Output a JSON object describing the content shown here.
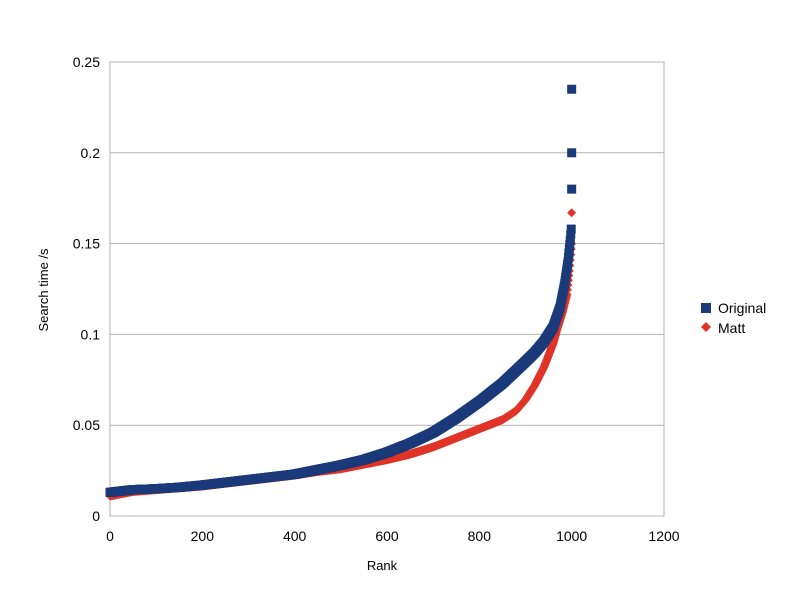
{
  "chart_data": {
    "type": "scatter",
    "title": "",
    "xlabel": "Rank",
    "ylabel": "Search time /s",
    "xlim": [
      0,
      1200
    ],
    "ylim": [
      0,
      0.25
    ],
    "x_ticks": [
      0,
      200,
      400,
      600,
      800,
      1000,
      1200
    ],
    "y_ticks": [
      0,
      0.05,
      0.1,
      0.15,
      0.2,
      0.25
    ],
    "x_tick_labels": [
      "0",
      "200",
      "400",
      "600",
      "800",
      "1000",
      "1200"
    ],
    "y_tick_labels": [
      "0",
      "0.05",
      "0.1",
      "0.15",
      "0.2",
      "0.25"
    ],
    "grid": "horizontal",
    "legend_position": "right",
    "series": [
      {
        "name": "Original",
        "marker": "square",
        "color": "#1b3a7a",
        "points": [
          [
            0,
            0.013
          ],
          [
            50,
            0.0145
          ],
          [
            100,
            0.015
          ],
          [
            150,
            0.0158
          ],
          [
            200,
            0.017
          ],
          [
            250,
            0.0185
          ],
          [
            300,
            0.02
          ],
          [
            350,
            0.0215
          ],
          [
            400,
            0.023
          ],
          [
            450,
            0.0255
          ],
          [
            500,
            0.028
          ],
          [
            550,
            0.031
          ],
          [
            600,
            0.035
          ],
          [
            650,
            0.04
          ],
          [
            700,
            0.046
          ],
          [
            750,
            0.054
          ],
          [
            800,
            0.063
          ],
          [
            850,
            0.073
          ],
          [
            900,
            0.085
          ],
          [
            920,
            0.09
          ],
          [
            940,
            0.096
          ],
          [
            960,
            0.104
          ],
          [
            975,
            0.115
          ],
          [
            985,
            0.128
          ],
          [
            992,
            0.14
          ],
          [
            997,
            0.152
          ],
          [
            999,
            0.158
          ],
          [
            1000,
            0.18
          ],
          [
            1000,
            0.2
          ],
          [
            1000,
            0.235
          ]
        ]
      },
      {
        "name": "Matt",
        "marker": "diamond",
        "color": "#e03428",
        "points": [
          [
            0,
            0.011
          ],
          [
            50,
            0.0135
          ],
          [
            100,
            0.0145
          ],
          [
            150,
            0.0155
          ],
          [
            200,
            0.0165
          ],
          [
            250,
            0.018
          ],
          [
            300,
            0.0195
          ],
          [
            350,
            0.021
          ],
          [
            400,
            0.0225
          ],
          [
            450,
            0.0245
          ],
          [
            500,
            0.026
          ],
          [
            550,
            0.0285
          ],
          [
            600,
            0.031
          ],
          [
            650,
            0.034
          ],
          [
            700,
            0.038
          ],
          [
            750,
            0.043
          ],
          [
            800,
            0.048
          ],
          [
            850,
            0.053
          ],
          [
            880,
            0.058
          ],
          [
            900,
            0.064
          ],
          [
            920,
            0.072
          ],
          [
            940,
            0.082
          ],
          [
            960,
            0.095
          ],
          [
            970,
            0.104
          ],
          [
            980,
            0.112
          ],
          [
            990,
            0.122
          ],
          [
            995,
            0.135
          ],
          [
            1000,
            0.15
          ],
          [
            1000,
            0.167
          ]
        ]
      }
    ]
  }
}
